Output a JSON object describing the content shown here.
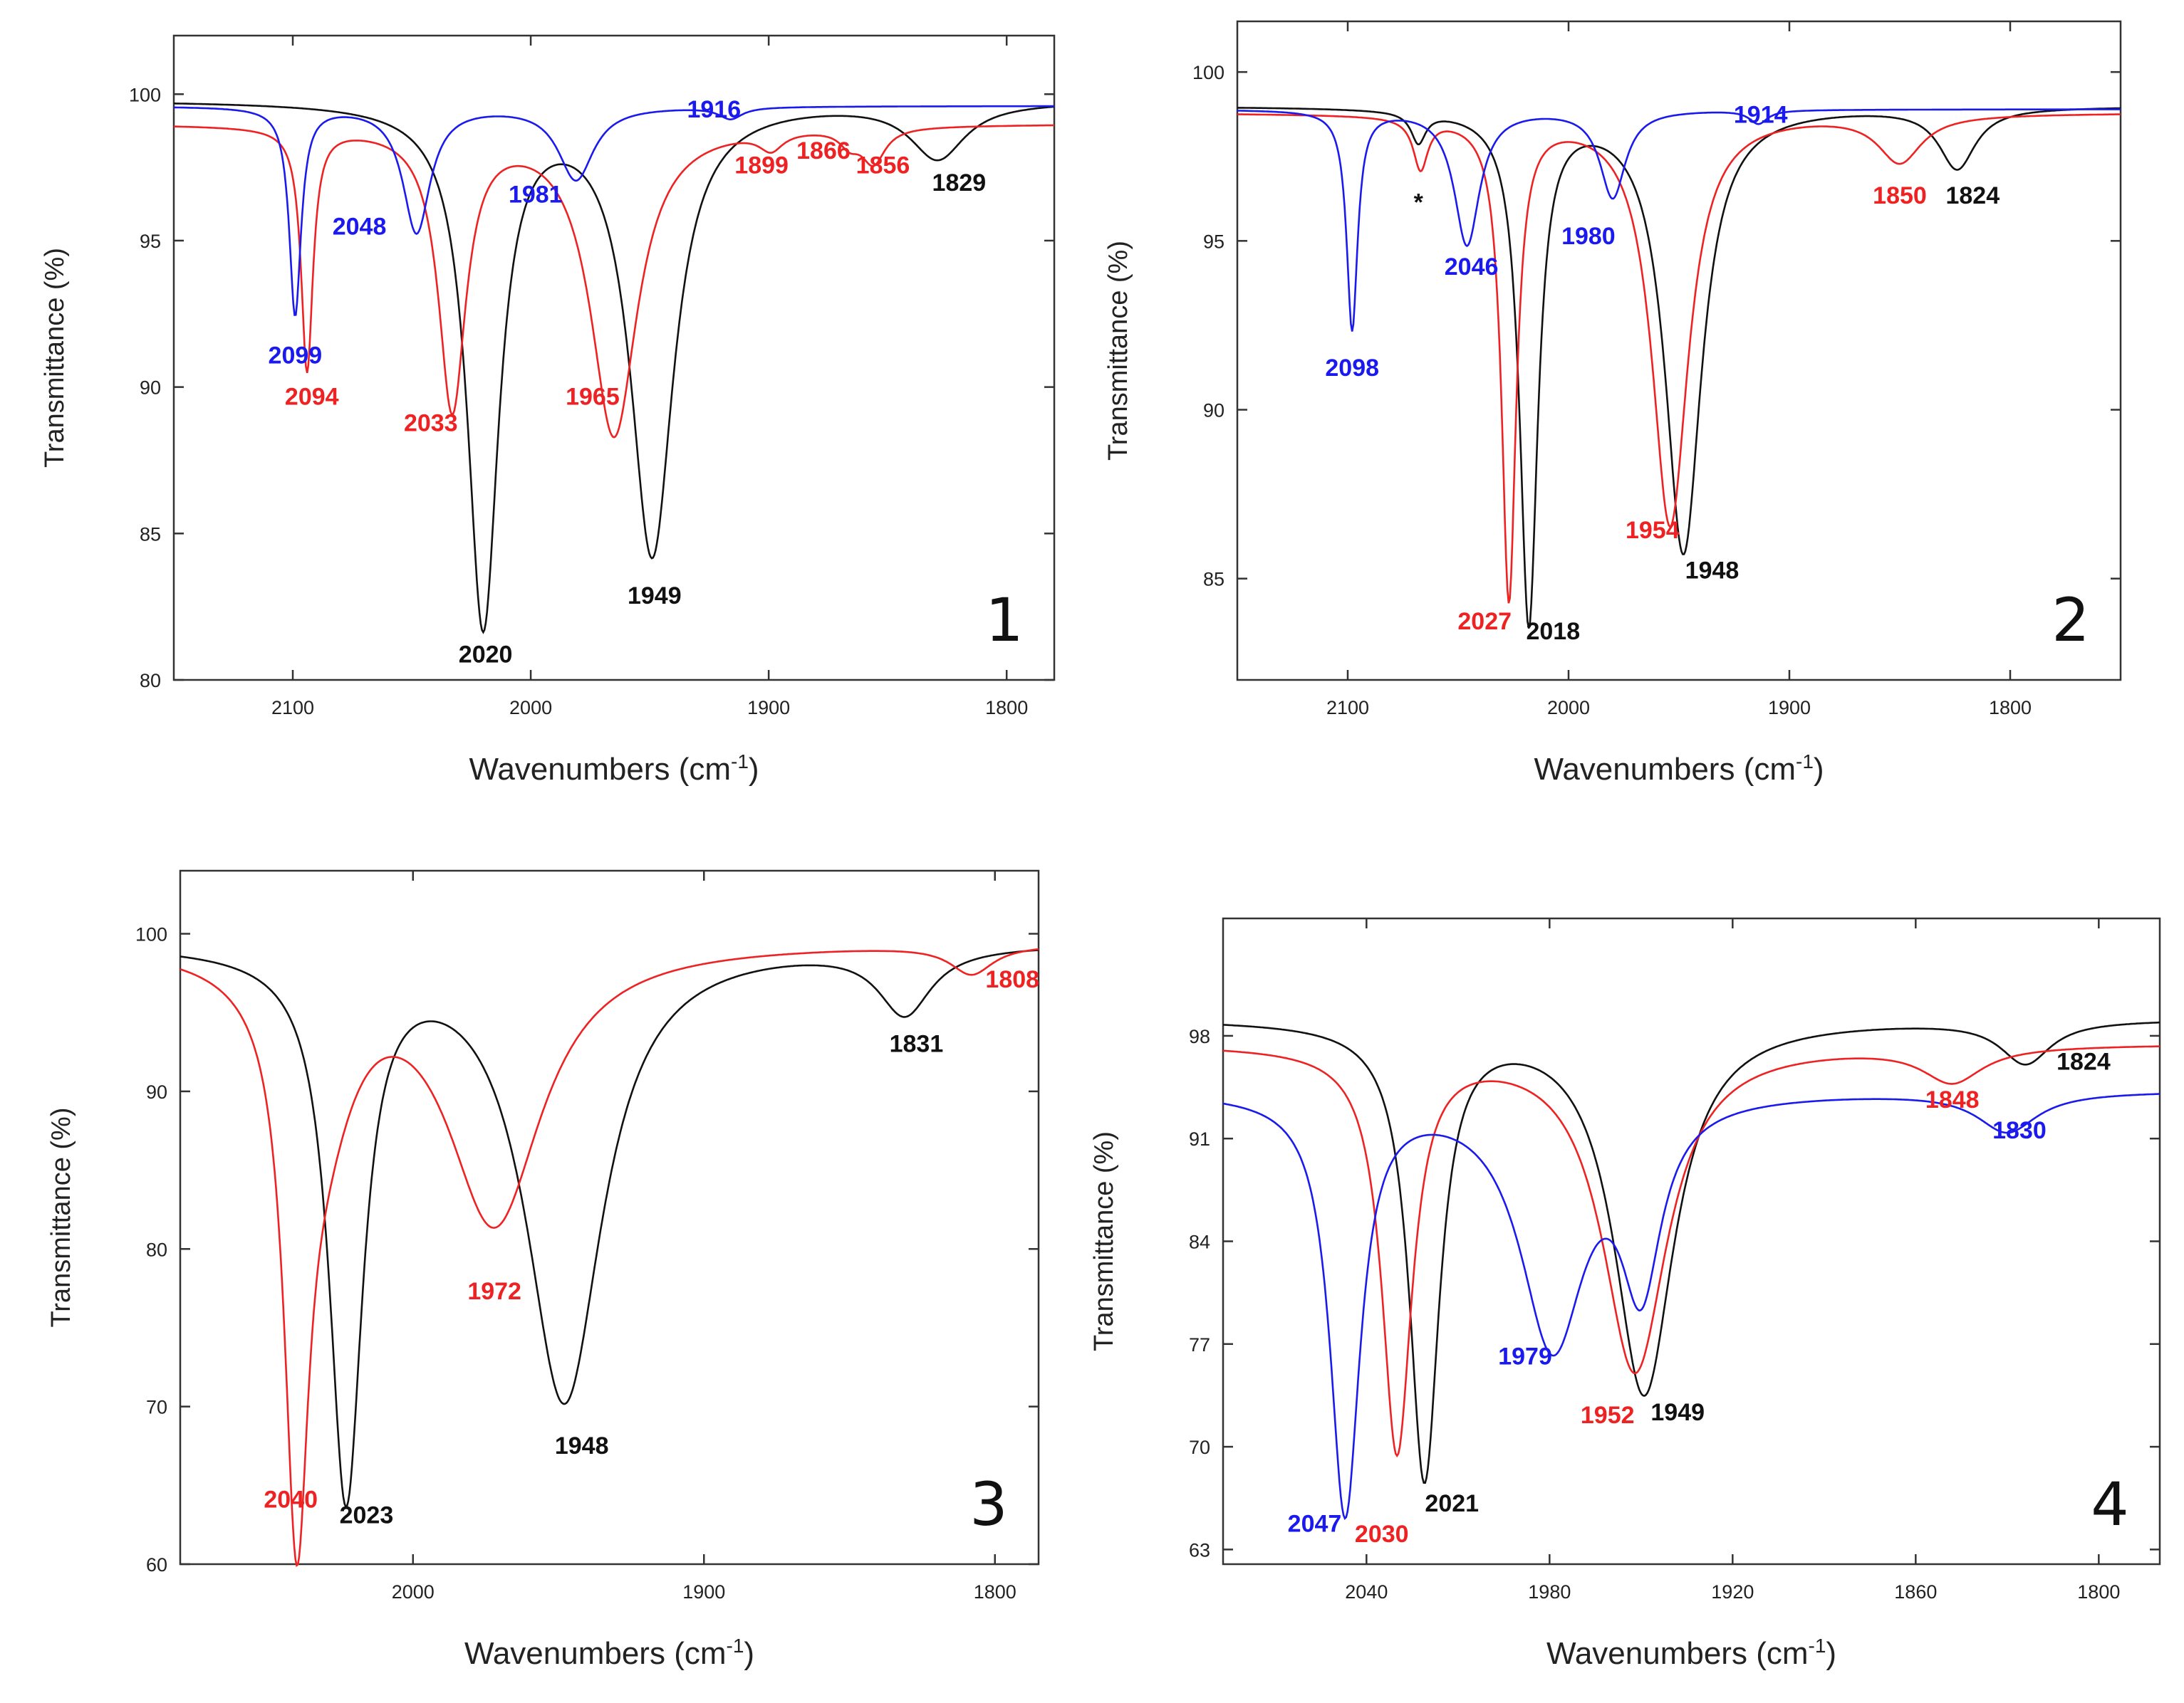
{
  "chart_data": [
    {
      "type": "line",
      "panel_label": "1",
      "xlabel": "Wavenumbers (cm",
      "xlabel_sup": "-1",
      "xlabel_close": ")",
      "ylabel": "Transmittance (%)",
      "xlim": [
        2150,
        1780
      ],
      "ylim": [
        80,
        102
      ],
      "xticks": [
        2100,
        2000,
        1900,
        1800
      ],
      "yticks": [
        80,
        85,
        90,
        95,
        100
      ],
      "series": [
        {
          "name": "black",
          "color": "#111111",
          "baseline": 99.8,
          "peaks": [
            [
              2020,
              17.8,
              8
            ],
            [
              1949,
              15.4,
              11
            ],
            [
              1829,
              1.9,
              14
            ]
          ]
        },
        {
          "name": "red",
          "color": "#ee2222",
          "baseline": 99.0,
          "peaks": [
            [
              2094,
              8.3,
              3
            ],
            [
              2033,
              9.6,
              7
            ],
            [
              1965,
              10.6,
              12
            ],
            [
              1899,
              0.6,
              6
            ],
            [
              1866,
              0.5,
              5
            ],
            [
              1856,
              1.2,
              6
            ]
          ]
        },
        {
          "name": "blue",
          "color": "#1a1aee",
          "baseline": 99.6,
          "peaks": [
            [
              2099,
              7.1,
              3
            ],
            [
              2048,
              4.3,
              7
            ],
            [
              1981,
              2.5,
              9
            ],
            [
              1916,
              0.4,
              6
            ]
          ]
        }
      ],
      "annotations": [
        {
          "text": "2099",
          "x": 2099,
          "y": 90.8,
          "color": "#1a1aee"
        },
        {
          "text": "2094",
          "x": 2092,
          "y": 89.4,
          "color": "#ee2222"
        },
        {
          "text": "2048",
          "x": 2072,
          "y": 95.2,
          "color": "#1a1aee"
        },
        {
          "text": "2033",
          "x": 2042,
          "y": 88.5,
          "color": "#ee2222"
        },
        {
          "text": "2020",
          "x": 2019,
          "y": 80.6,
          "color": "#111111"
        },
        {
          "text": "1981",
          "x": 1998,
          "y": 96.3,
          "color": "#1a1aee"
        },
        {
          "text": "1965",
          "x": 1974,
          "y": 89.4,
          "color": "#ee2222"
        },
        {
          "text": "1949",
          "x": 1948,
          "y": 82.6,
          "color": "#111111"
        },
        {
          "text": "1916",
          "x": 1923,
          "y": 99.2,
          "color": "#1a1aee"
        },
        {
          "text": "1899",
          "x": 1903,
          "y": 97.3,
          "color": "#ee2222"
        },
        {
          "text": "1866",
          "x": 1877,
          "y": 97.8,
          "color": "#ee2222"
        },
        {
          "text": "1856",
          "x": 1852,
          "y": 97.3,
          "color": "#ee2222"
        },
        {
          "text": "1829",
          "x": 1820,
          "y": 96.7,
          "color": "#111111"
        }
      ]
    },
    {
      "type": "line",
      "panel_label": "2",
      "xlabel": "Wavenumbers (cm",
      "xlabel_sup": "-1",
      "xlabel_close": ")",
      "ylabel": "Transmittance (%)",
      "xlim": [
        2150,
        1750
      ],
      "ylim": [
        82,
        101.5
      ],
      "xticks": [
        2100,
        2000,
        1900,
        1800
      ],
      "yticks": [
        85,
        90,
        95,
        100
      ],
      "series": [
        {
          "name": "black",
          "color": "#111111",
          "baseline": 99.0,
          "peaks": [
            [
              2068,
              0.9,
              4
            ],
            [
              2018,
              15.2,
              5
            ],
            [
              1948,
              13.2,
              10
            ],
            [
              1824,
              1.8,
              10
            ]
          ]
        },
        {
          "name": "red",
          "color": "#ee2222",
          "baseline": 98.8,
          "peaks": [
            [
              2067,
              1.5,
              4
            ],
            [
              2027,
              14.3,
              4
            ],
            [
              1954,
              12.2,
              10
            ],
            [
              1850,
              1.4,
              12
            ]
          ]
        },
        {
          "name": "blue",
          "color": "#1a1aee",
          "baseline": 98.9,
          "peaks": [
            [
              2098,
              6.5,
              3
            ],
            [
              2046,
              4.0,
              7
            ],
            [
              1980,
              2.6,
              7
            ],
            [
              1914,
              0.4,
              5
            ]
          ]
        }
      ],
      "annotations": [
        {
          "text": "*",
          "x": 2068,
          "y": 95.9,
          "color": "#111111"
        },
        {
          "text": "2098",
          "x": 2098,
          "y": 91.0,
          "color": "#1a1aee"
        },
        {
          "text": "2046",
          "x": 2044,
          "y": 94.0,
          "color": "#1a1aee"
        },
        {
          "text": "1980",
          "x": 1991,
          "y": 94.9,
          "color": "#1a1aee"
        },
        {
          "text": "2027",
          "x": 2038,
          "y": 83.5,
          "color": "#ee2222"
        },
        {
          "text": "2018",
          "x": 2007,
          "y": 83.2,
          "color": "#111111"
        },
        {
          "text": "1954",
          "x": 1962,
          "y": 86.2,
          "color": "#ee2222"
        },
        {
          "text": "1948",
          "x": 1935,
          "y": 85.0,
          "color": "#111111"
        },
        {
          "text": "1914",
          "x": 1913,
          "y": 98.5,
          "color": "#1a1aee"
        },
        {
          "text": "1850",
          "x": 1850,
          "y": 96.1,
          "color": "#ee2222"
        },
        {
          "text": "1824",
          "x": 1817,
          "y": 96.1,
          "color": "#111111"
        }
      ]
    },
    {
      "type": "line",
      "panel_label": "3",
      "xlabel": "Wavenumbers (cm",
      "xlabel_sup": "-1",
      "xlabel_close": ")",
      "ylabel": "Transmittance (%)",
      "xlim": [
        2080,
        1785
      ],
      "ylim": [
        60,
        104
      ],
      "xticks": [
        2000,
        1900,
        1800
      ],
      "yticks": [
        60,
        70,
        80,
        90,
        100
      ],
      "series": [
        {
          "name": "black",
          "color": "#111111",
          "baseline": 99.5,
          "peaks": [
            [
              2023,
              34.6,
              7
            ],
            [
              1948,
              29.0,
              16
            ],
            [
              1831,
              4.2,
              11
            ]
          ]
        },
        {
          "name": "red",
          "color": "#ee2222",
          "baseline": 99.5,
          "peaks": [
            [
              2040,
              31.8,
              5
            ],
            [
              2031,
              9.0,
              14
            ],
            [
              1972,
              17.5,
              20
            ],
            [
              1808,
              1.8,
              9
            ]
          ]
        }
      ],
      "annotations": [
        {
          "text": "2040",
          "x": 2042,
          "y": 63.6,
          "color": "#ee2222"
        },
        {
          "text": "2023",
          "x": 2016,
          "y": 62.6,
          "color": "#111111"
        },
        {
          "text": "1972",
          "x": 1972,
          "y": 76.8,
          "color": "#ee2222"
        },
        {
          "text": "1948",
          "x": 1942,
          "y": 67.0,
          "color": "#111111"
        },
        {
          "text": "1831",
          "x": 1827,
          "y": 92.5,
          "color": "#111111"
        },
        {
          "text": "1808",
          "x": 1794,
          "y": 96.6,
          "color": "#ee2222"
        }
      ]
    },
    {
      "type": "line",
      "panel_label": "4",
      "xlabel": "Wavenumbers (cm",
      "xlabel_sup": "-1",
      "xlabel_close": ")",
      "ylabel": "Transmittance (%)",
      "xlim": [
        2087,
        1780
      ],
      "ylim": [
        62,
        106
      ],
      "xticks": [
        2040,
        1980,
        1920,
        1860,
        1800
      ],
      "yticks": [
        63,
        70,
        77,
        84,
        91,
        98
      ],
      "series": [
        {
          "name": "black",
          "color": "#111111",
          "baseline": 99.2,
          "peaks": [
            [
              2021,
              31.0,
              6
            ],
            [
              1949,
              25.5,
              12
            ],
            [
              1824,
              2.9,
              10
            ]
          ]
        },
        {
          "name": "red",
          "color": "#ee2222",
          "baseline": 97.5,
          "peaks": [
            [
              2030,
              27.5,
              6
            ],
            [
              1952,
              22.3,
              13
            ],
            [
              1848,
              2.4,
              12
            ]
          ]
        },
        {
          "name": "blue",
          "color": "#1a1aee",
          "baseline": 94.3,
          "peaks": [
            [
              2047,
              28.5,
              6
            ],
            [
              1979,
              17.0,
              13
            ],
            [
              1950,
              12.0,
              8
            ],
            [
              1830,
              2.7,
              12
            ]
          ]
        }
      ],
      "annotations": [
        {
          "text": "2047",
          "x": 2057,
          "y": 64.2,
          "color": "#1a1aee"
        },
        {
          "text": "2030",
          "x": 2035,
          "y": 63.5,
          "color": "#ee2222"
        },
        {
          "text": "2021",
          "x": 2012,
          "y": 65.6,
          "color": "#111111"
        },
        {
          "text": "1979",
          "x": 1988,
          "y": 75.6,
          "color": "#1a1aee"
        },
        {
          "text": "1952",
          "x": 1961,
          "y": 71.6,
          "color": "#ee2222"
        },
        {
          "text": "1949",
          "x": 1938,
          "y": 71.8,
          "color": "#111111"
        },
        {
          "text": "1848",
          "x": 1848,
          "y": 93.1,
          "color": "#ee2222"
        },
        {
          "text": "1830",
          "x": 1826,
          "y": 91.0,
          "color": "#1a1aee"
        },
        {
          "text": "1824",
          "x": 1805,
          "y": 95.7,
          "color": "#111111"
        }
      ]
    }
  ]
}
